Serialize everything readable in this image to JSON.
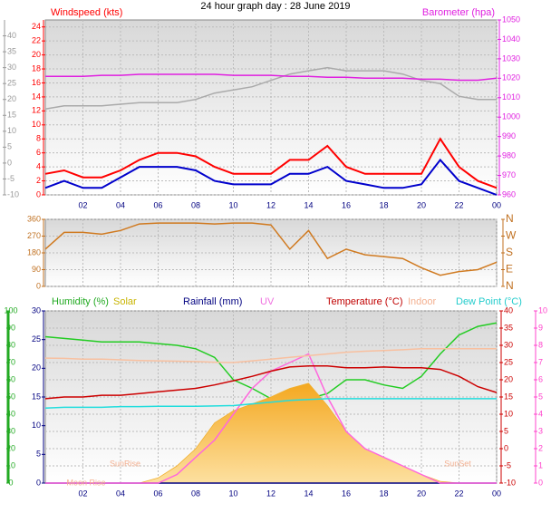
{
  "chart_data": [
    {
      "type": "line",
      "title": "24 hour graph day : 28 June 2019",
      "x": [
        0,
        1,
        2,
        3,
        4,
        5,
        6,
        7,
        8,
        9,
        10,
        11,
        12,
        13,
        14,
        15,
        16,
        17,
        18,
        19,
        20,
        21,
        22,
        23,
        24
      ],
      "xlim": [
        0,
        24
      ],
      "xticks": [
        {
          "value": 2,
          "label": "02"
        },
        {
          "value": 4,
          "label": "04"
        },
        {
          "value": 6,
          "label": "06"
        },
        {
          "value": 8,
          "label": "08"
        },
        10,
        12,
        14,
        16,
        18,
        20,
        22,
        {
          "value": 24,
          "label": "00"
        }
      ],
      "ylim": [
        0,
        25
      ],
      "yticks": [
        0,
        2,
        4,
        6,
        8,
        10,
        12,
        14,
        16,
        18,
        20,
        22,
        24
      ],
      "y2lim": [
        960,
        1050
      ],
      "y2ticks": [
        960,
        970,
        980,
        990,
        1000,
        1010,
        1020,
        1030,
        1040,
        1050
      ],
      "y3lim": [
        -10,
        45
      ],
      "y3ticks": [
        -10,
        -5,
        0,
        5,
        10,
        15,
        20,
        25,
        30,
        35,
        40
      ],
      "grid": true,
      "series": [
        {
          "color": "#aaaaaa",
          "axis": "y3",
          "values": [
            17,
            18,
            18,
            18,
            18.5,
            19,
            19,
            19,
            20,
            22,
            23,
            24,
            26,
            28,
            29,
            30,
            29,
            29,
            29,
            28,
            26,
            25,
            21,
            20,
            20
          ]
        },
        {
          "name": "Windspeed (kts)",
          "color": "#ff0000",
          "values": [
            3,
            3.5,
            2.5,
            2.5,
            3.5,
            5,
            6,
            6,
            5.5,
            4,
            3,
            3,
            3,
            5,
            5,
            7,
            4,
            3,
            3,
            3,
            3,
            8,
            4,
            2,
            1
          ]
        },
        {
          "color": "#0000cc",
          "values": [
            1,
            2,
            1,
            1,
            2.5,
            4,
            4,
            4,
            3.5,
            2,
            1.5,
            1.5,
            1.5,
            3,
            3,
            4,
            2,
            1.5,
            1,
            1,
            1.5,
            5,
            2,
            1,
            0
          ]
        },
        {
          "name": "Barometer (hpa)",
          "color": "#e020e0",
          "axis": "y2",
          "values": [
            1021,
            1021,
            1021,
            1021.5,
            1021.5,
            1022,
            1022,
            1022,
            1022,
            1022,
            1021.5,
            1021.5,
            1021.5,
            1021,
            1021,
            1020.5,
            1020.5,
            1020,
            1020,
            1020,
            1019.5,
            1019.5,
            1019,
            1019,
            1020
          ]
        }
      ]
    },
    {
      "type": "line",
      "x": [
        0,
        1,
        2,
        3,
        4,
        5,
        6,
        7,
        8,
        9,
        10,
        11,
        12,
        13,
        14,
        15,
        16,
        17,
        18,
        19,
        20,
        21,
        22,
        23,
        24
      ],
      "xlim": [
        0,
        24
      ],
      "xticks": [
        2,
        4,
        6,
        8,
        10,
        12,
        14,
        16,
        18,
        20,
        22,
        24
      ],
      "ylim": [
        0,
        360
      ],
      "yticks": [
        0,
        90,
        180,
        270,
        360
      ],
      "y2lim": [
        0,
        360
      ],
      "y2ticks": [
        {
          "value": 0,
          "label": "N"
        },
        {
          "value": 90,
          "label": "E"
        },
        {
          "value": 180,
          "label": "S"
        },
        {
          "value": 270,
          "label": "W"
        },
        {
          "value": 360,
          "label": "N"
        }
      ],
      "grid": true,
      "series": [
        {
          "color": "#d07a20",
          "values": [
            200,
            290,
            290,
            280,
            300,
            335,
            340,
            340,
            340,
            335,
            340,
            340,
            330,
            200,
            300,
            150,
            200,
            170,
            160,
            150,
            100,
            60,
            80,
            90,
            130
          ]
        }
      ]
    },
    {
      "type": "line",
      "x": [
        0,
        1,
        2,
        3,
        4,
        5,
        6,
        7,
        8,
        9,
        10,
        11,
        12,
        13,
        14,
        15,
        16,
        17,
        18,
        19,
        20,
        21,
        22,
        23,
        24
      ],
      "xlim": [
        0,
        24
      ],
      "xticks": [
        {
          "value": 2,
          "label": "02"
        },
        {
          "value": 4,
          "label": "04"
        },
        {
          "value": 6,
          "label": "06"
        },
        {
          "value": 8,
          "label": "08"
        },
        10,
        12,
        14,
        16,
        18,
        20,
        22,
        {
          "value": 24,
          "label": "00"
        }
      ],
      "ylim": [
        0,
        100
      ],
      "yticks": [
        0,
        10,
        20,
        30,
        40,
        50,
        60,
        70,
        80,
        90,
        100
      ],
      "y2lim": [
        0,
        30
      ],
      "y2ticks": [
        0,
        5,
        10,
        15,
        20,
        25,
        30
      ],
      "y3lim": [
        -10,
        40
      ],
      "y3ticks": [
        -10,
        -5,
        0,
        5,
        10,
        15,
        20,
        25,
        30,
        35,
        40
      ],
      "y4lim": [
        0,
        10
      ],
      "y4ticks": [
        0,
        1,
        2,
        3,
        4,
        5,
        6,
        7,
        8,
        9,
        10
      ],
      "grid": true,
      "annotations": [
        "Moon Rise",
        "SunRise",
        "SunSet"
      ],
      "series": [
        {
          "name": "Humidity (%)",
          "color": "#22cc22",
          "values": [
            85,
            84,
            83,
            82,
            82,
            82,
            81,
            80,
            78,
            73,
            60,
            55,
            49,
            49,
            49,
            52,
            60,
            60,
            57,
            55,
            62,
            75,
            86,
            91,
            93
          ]
        },
        {
          "name": "Solar",
          "color": "#f0b030",
          "fill": true,
          "values": [
            0,
            0,
            0,
            0,
            0,
            0,
            3,
            10,
            20,
            35,
            42,
            46,
            50,
            55,
            58,
            45,
            30,
            20,
            15,
            10,
            5,
            1,
            0,
            0,
            0
          ]
        },
        {
          "name": "Rainfall (mm)",
          "color": "#000080",
          "axis": "y2",
          "values": [
            0,
            0,
            0,
            0,
            0,
            0,
            0,
            0,
            0,
            0,
            0,
            0,
            0,
            0,
            0,
            0,
            0,
            0,
            0,
            0,
            0,
            0,
            0,
            0,
            0
          ]
        },
        {
          "name": "UV",
          "color": "#ff66dd",
          "axis": "y4",
          "values": [
            0,
            0,
            0,
            0,
            0,
            0,
            0,
            0.5,
            1.5,
            2.5,
            4,
            5.5,
            6.5,
            7,
            7.5,
            5,
            3,
            2,
            1.5,
            1,
            0.5,
            0,
            0,
            0,
            0
          ]
        },
        {
          "name": "Temperature (°C)",
          "color": "#cc0000",
          "axis": "y3",
          "values": [
            14.5,
            15,
            15,
            15.5,
            15.5,
            16,
            16.5,
            17,
            17.5,
            18.5,
            19.7,
            21,
            22.5,
            23.7,
            24,
            24,
            23.5,
            23.5,
            23.7,
            23.5,
            23.5,
            23,
            21,
            18,
            16.3
          ]
        },
        {
          "name": "Indoor",
          "color": "#f8c0a0",
          "axis": "y3",
          "values": [
            26.3,
            26.2,
            26,
            26,
            25.8,
            25.6,
            25.5,
            25.4,
            25.3,
            25.1,
            25,
            25.5,
            26,
            26.5,
            27,
            27.5,
            28,
            28.3,
            28.5,
            28.7,
            29,
            29,
            29,
            29,
            29
          ]
        },
        {
          "name": "Dew Point (°C)",
          "color": "#22dddd",
          "axis": "y3",
          "values": [
            11.8,
            12,
            12,
            12,
            12.2,
            12.2,
            12.3,
            12.3,
            12.3,
            12.4,
            12.5,
            13,
            13.5,
            14,
            14.3,
            14.5,
            14.5,
            14.5,
            14.5,
            14.5,
            14.5,
            14.5,
            14.5,
            14.5,
            14.5
          ]
        }
      ]
    }
  ]
}
